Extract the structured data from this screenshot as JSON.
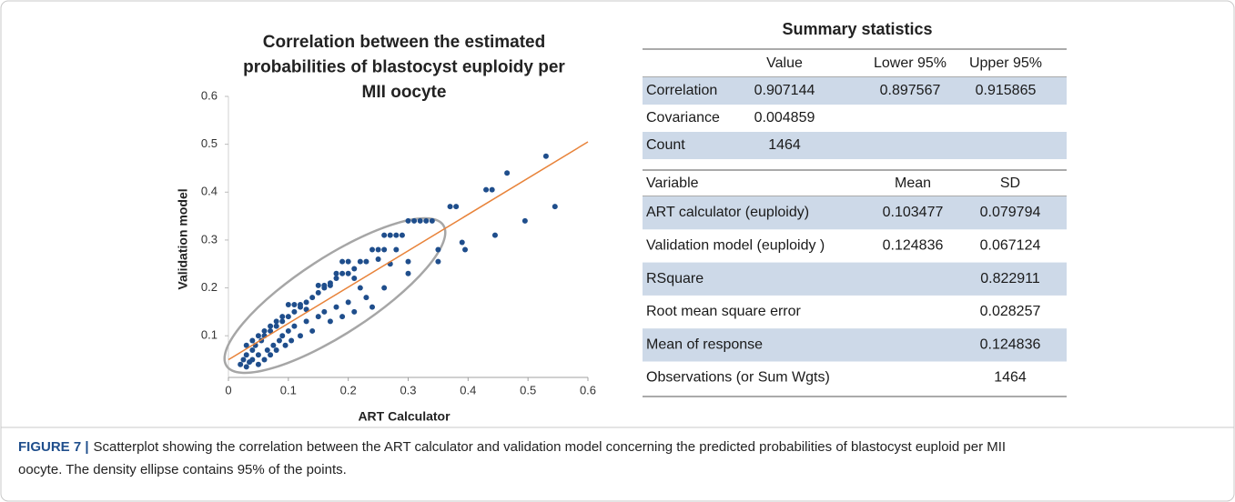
{
  "chart_data": {
    "type": "scatter",
    "title": [
      "Correlation between the estimated",
      "probabilities of blastocyst euploidy per",
      "MII oocyte"
    ],
    "x_label": "ART Calculator",
    "y_label": "Validation model",
    "color": "#1f4e8c",
    "x": [
      0.02,
      0.025,
      0.03,
      0.03,
      0.035,
      0.04,
      0.04,
      0.045,
      0.05,
      0.05,
      0.055,
      0.06,
      0.06,
      0.065,
      0.07,
      0.07,
      0.075,
      0.08,
      0.08,
      0.085,
      0.09,
      0.09,
      0.095,
      0.1,
      0.1,
      0.105,
      0.11,
      0.11,
      0.12,
      0.12,
      0.13,
      0.13,
      0.14,
      0.14,
      0.15,
      0.15,
      0.16,
      0.16,
      0.17,
      0.17,
      0.18,
      0.18,
      0.19,
      0.19,
      0.2,
      0.2,
      0.21,
      0.21,
      0.22,
      0.22,
      0.23,
      0.23,
      0.24,
      0.24,
      0.25,
      0.26,
      0.26,
      0.27,
      0.28,
      0.29,
      0.3,
      0.3,
      0.31,
      0.32,
      0.33,
      0.34,
      0.35,
      0.35,
      0.37,
      0.38,
      0.39,
      0.395,
      0.43,
      0.44,
      0.445,
      0.465,
      0.495,
      0.53,
      0.545,
      0.21,
      0.25,
      0.27,
      0.13,
      0.1,
      0.11,
      0.12,
      0.15,
      0.16,
      0.17,
      0.18,
      0.19,
      0.2,
      0.3,
      0.26,
      0.28,
      0.09,
      0.08,
      0.07,
      0.06,
      0.05,
      0.04,
      0.03
    ],
    "values": [
      0.04,
      0.05,
      0.035,
      0.06,
      0.045,
      0.07,
      0.05,
      0.08,
      0.04,
      0.06,
      0.09,
      0.05,
      0.1,
      0.07,
      0.11,
      0.06,
      0.08,
      0.12,
      0.07,
      0.09,
      0.13,
      0.1,
      0.08,
      0.14,
      0.11,
      0.09,
      0.15,
      0.12,
      0.16,
      0.1,
      0.17,
      0.13,
      0.18,
      0.11,
      0.19,
      0.14,
      0.2,
      0.15,
      0.21,
      0.13,
      0.22,
      0.16,
      0.23,
      0.14,
      0.23,
      0.17,
      0.24,
      0.15,
      0.255,
      0.2,
      0.255,
      0.18,
      0.28,
      0.16,
      0.28,
      0.31,
      0.2,
      0.31,
      0.31,
      0.31,
      0.34,
      0.23,
      0.34,
      0.34,
      0.34,
      0.34,
      0.28,
      0.255,
      0.37,
      0.37,
      0.295,
      0.28,
      0.405,
      0.405,
      0.31,
      0.44,
      0.34,
      0.475,
      0.37,
      0.22,
      0.26,
      0.25,
      0.155,
      0.165,
      0.165,
      0.165,
      0.205,
      0.205,
      0.205,
      0.23,
      0.255,
      0.255,
      0.255,
      0.28,
      0.28,
      0.14,
      0.13,
      0.12,
      0.11,
      0.1,
      0.09,
      0.08
    ],
    "fit_line": {
      "x": [
        0,
        0.6
      ],
      "values": [
        0.05,
        0.505
      ],
      "color": "#e8833a"
    },
    "xlim": [
      0,
      0.6
    ],
    "xticks": [
      0,
      0.1,
      0.2,
      0.3,
      0.4,
      0.5,
      0.6
    ],
    "ylim": [
      0.013,
      0.6
    ],
    "yticks": [
      0.1,
      0.2,
      0.3,
      0.4,
      0.5,
      0.6
    ]
  },
  "summary_table": {
    "title": "Summary statistics",
    "header": [
      "Value",
      "Lower 95%",
      "Upper 95%"
    ],
    "rows": [
      [
        "Correlation",
        "0.907144",
        "0.897567",
        "0.915865"
      ],
      [
        "Covariance",
        "0.004859"
      ],
      [
        "Count",
        "1464"
      ]
    ]
  },
  "fit_table": {
    "header": [
      "Variable",
      "Mean",
      "SD"
    ],
    "rows": [
      {
        "label": "ART calculator (euploidy)",
        "mean": "0.103477",
        "sd": "0.079794"
      },
      {
        "label": "Validation model (euploidy )",
        "mean": "0.124836",
        "sd": "0.067124"
      },
      {
        "label": "RSquare",
        "sd": "0.822911"
      },
      {
        "label": "Root mean square error",
        "sd": "0.028257"
      },
      {
        "label": "Mean of response",
        "sd": "0.124836"
      },
      {
        "label": "Observations (or Sum Wgts)",
        "sd": "1464"
      }
    ]
  },
  "caption": {
    "label": "FIGURE 7 |",
    "text": [
      "Scatterplot showing the correlation between the ART calculator and validation model concerning the predicted probabilities of blastocyst euploid per MII",
      "oocyte. The density ellipse contains 95% of the points."
    ]
  }
}
